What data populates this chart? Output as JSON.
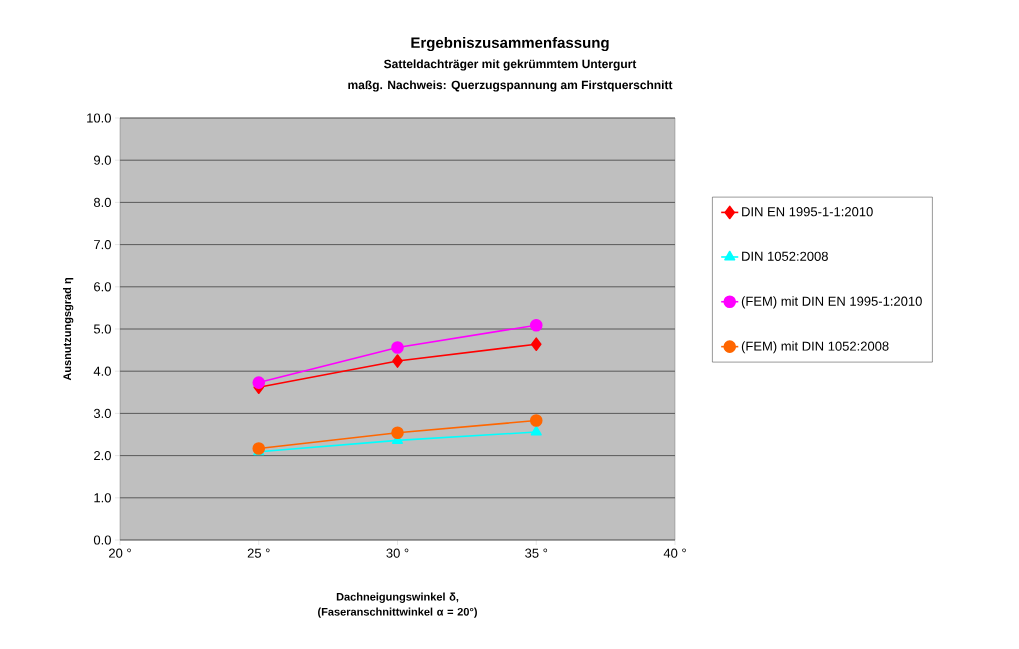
{
  "chart_data": {
    "type": "line",
    "title": "Ergebniszusammenfassung",
    "subtitle": "Satteldachträger mit gekrümmtem Untergurt",
    "annotations": [
      "maßg. Nachweis: Querzugspannung am Firstquerschnitt"
    ],
    "xlabel": "Dachneigungswinkel δ, (Faseranschnittwinkel α = 20°)",
    "ylabel": "Ausnutzungsgrad η",
    "x": [
      25,
      30,
      35
    ],
    "series": [
      {
        "name": "DIN EN 1995-1-1:2010",
        "color": "#ff0000",
        "marker": "diamond",
        "values": [
          3.62,
          4.24,
          4.64
        ]
      },
      {
        "name": "DIN 1052:2008",
        "color": "#00ffff",
        "marker": "triangle",
        "values": [
          2.09,
          2.36,
          2.56
        ]
      },
      {
        "name": "(FEM) mit DIN EN 1995-1:2010",
        "color": "#ff00ff",
        "marker": "circle",
        "values": [
          3.73,
          4.56,
          5.09
        ]
      },
      {
        "name": "(FEM) mit DIN 1052:2008",
        "color": "#ff6600",
        "marker": "circle",
        "values": [
          2.17,
          2.54,
          2.83
        ]
      }
    ],
    "xlim": [
      20,
      40
    ],
    "ylim": [
      0,
      10
    ],
    "xticks": [
      {
        "value": 20,
        "label": "20 °"
      },
      {
        "value": 25,
        "label": "25 °"
      },
      {
        "value": 30,
        "label": "30 °"
      },
      {
        "value": 35,
        "label": "35 °"
      },
      {
        "value": 40,
        "label": "40 °"
      }
    ],
    "yticks": [
      {
        "value": 0,
        "label": "0.0"
      },
      {
        "value": 1,
        "label": "1.0"
      },
      {
        "value": 2,
        "label": "2.0"
      },
      {
        "value": 3,
        "label": "3.0"
      },
      {
        "value": 4,
        "label": "4.0"
      },
      {
        "value": 5,
        "label": "5.0"
      },
      {
        "value": 6,
        "label": "6.0"
      },
      {
        "value": 7,
        "label": "7.0"
      },
      {
        "value": 8,
        "label": "8.0"
      },
      {
        "value": 9,
        "label": "9.0"
      },
      {
        "value": 10,
        "label": "10.0"
      }
    ],
    "grid": "y",
    "legend": "right",
    "line_style": "solid"
  }
}
